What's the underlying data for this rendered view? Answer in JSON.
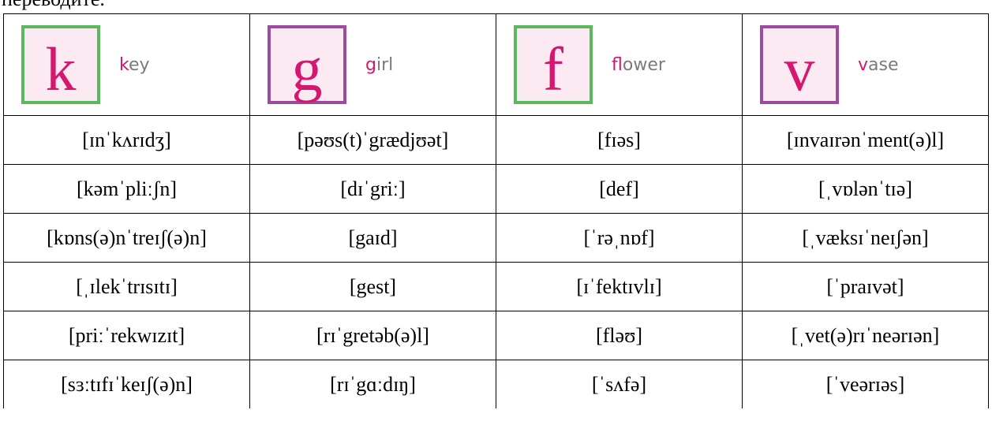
{
  "intro_text": "переводите.",
  "table": {
    "header": [
      {
        "letter": "k",
        "word": "key"
      },
      {
        "letter": "g",
        "word": "girl"
      },
      {
        "letter": "f",
        "word": "flower"
      },
      {
        "letter": "v",
        "word": "vase"
      }
    ],
    "rows": [
      [
        "[ɪnˈkʌrɪdʒ]",
        "[pəʊs(t)ˈgrædjʊət]",
        "[fɪəs]",
        "[ɪnvaɪrənˈment(ə)l]"
      ],
      [
        "[kəmˈpliːʃn]",
        "[dɪˈgriː]",
        "[def]",
        "[ˌvɒlənˈtɪə]"
      ],
      [
        "[kɒns(ə)nˈtreɪʃ(ə)n]",
        "[gaɪd]",
        "[ˈrəˌnɒf]",
        "[ˌvæksɪˈneɪʃən]"
      ],
      [
        "[ˌɪlekˈtrɪsɪtɪ]",
        "[gest]",
        "[ɪˈfektɪvlɪ]",
        "[ˈpraɪvət]"
      ],
      [
        "[priːˈrekwɪzɪt]",
        "[rɪˈgretəb(ə)l]",
        "[fləʊ]",
        "[ˌvet(ə)rɪˈneərɪən]"
      ],
      [
        "[sɜːtɪfɪˈkeɪʃ(ə)n]",
        "[rɪˈgɑːdɪŋ]",
        "[ˈsʌfə]",
        "[ˈveərɪəs]"
      ]
    ]
  }
}
